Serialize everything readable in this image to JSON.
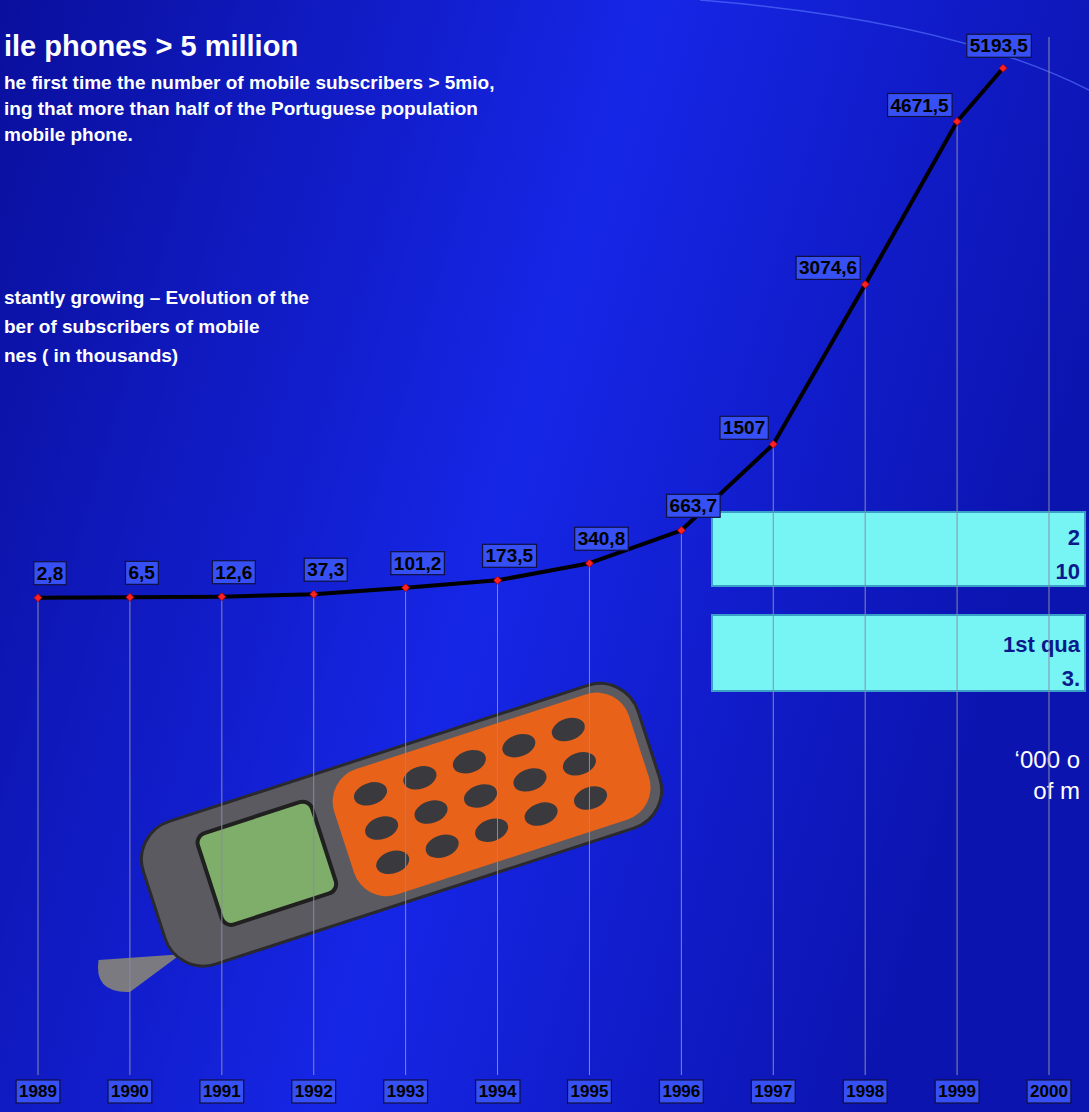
{
  "chart_data": {
    "type": "line",
    "title": "ile phones > 5 million",
    "subtitle": [
      "he first time the number of mobile subscribers > 5mio,",
      "ing that more than half of the Portuguese population",
      "mobile phone."
    ],
    "annotations": [
      [
        "stantly growing – Evolution of the",
        "ber of subscribers of mobile",
        "nes ( in thousands)"
      ],
      [
        "2",
        "10"
      ],
      [
        "1st qua",
        "3."
      ],
      [
        "‘000 o",
        "of m"
      ]
    ],
    "x": [
      1989,
      1990,
      1991,
      1992,
      1993,
      1994,
      1995,
      1996,
      1997,
      1998,
      1999,
      1999.5
    ],
    "values": [
      2.8,
      6.5,
      12.6,
      37.3,
      101.2,
      173.5,
      340.8,
      663.7,
      1507,
      3074.6,
      4671.5,
      5193.5
    ],
    "value_labels": [
      "2,8",
      "6,5",
      "12,6",
      "37,3",
      "101,2",
      "173,5",
      "340,8",
      "663,7",
      "1507",
      "3074,6",
      "4671,5",
      "5193,5"
    ],
    "data_labels": true,
    "color": "#000000",
    "marker": "diamond",
    "line_style": "solid",
    "xlim": [
      1989,
      2000
    ],
    "xticks": [
      1989,
      1990,
      1991,
      1992,
      1993,
      1994,
      1995,
      1996,
      1997,
      1998,
      1999,
      2000
    ],
    "ylim": [
      0,
      5500
    ],
    "tick_labels": "x",
    "grid": true
  }
}
